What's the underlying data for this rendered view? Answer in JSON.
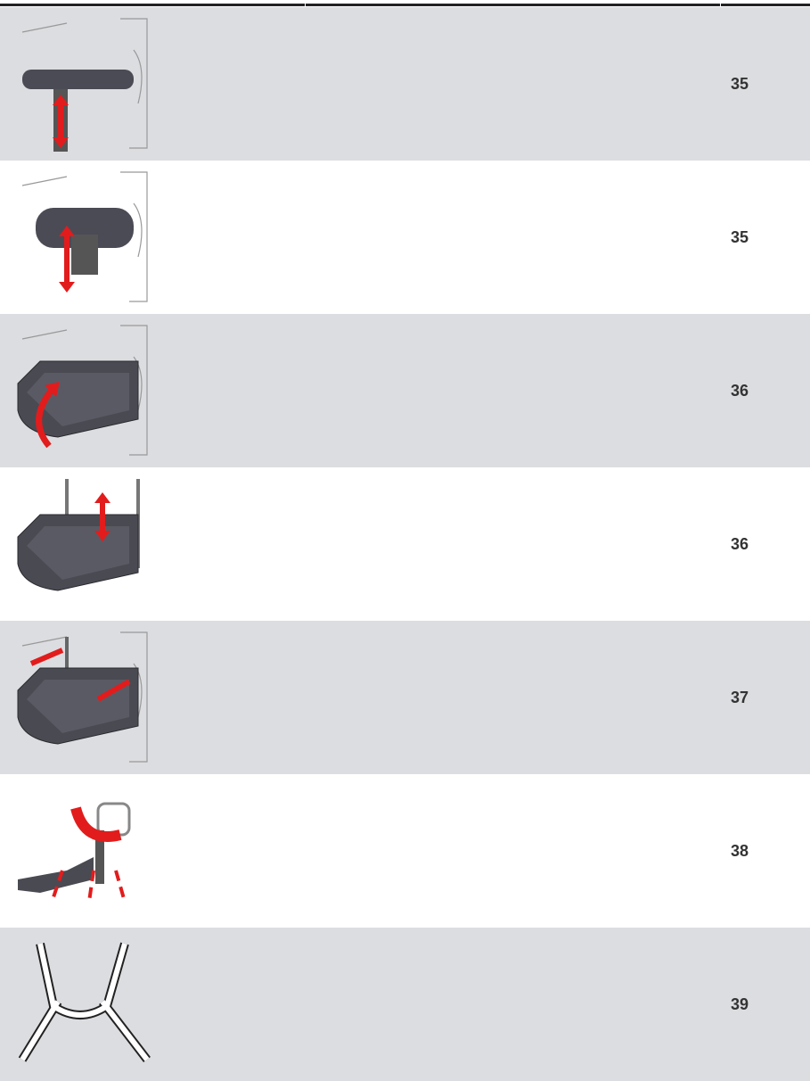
{
  "table": {
    "rows": [
      "35",
      "35",
      "36",
      "36",
      "37",
      "38",
      "39"
    ]
  }
}
